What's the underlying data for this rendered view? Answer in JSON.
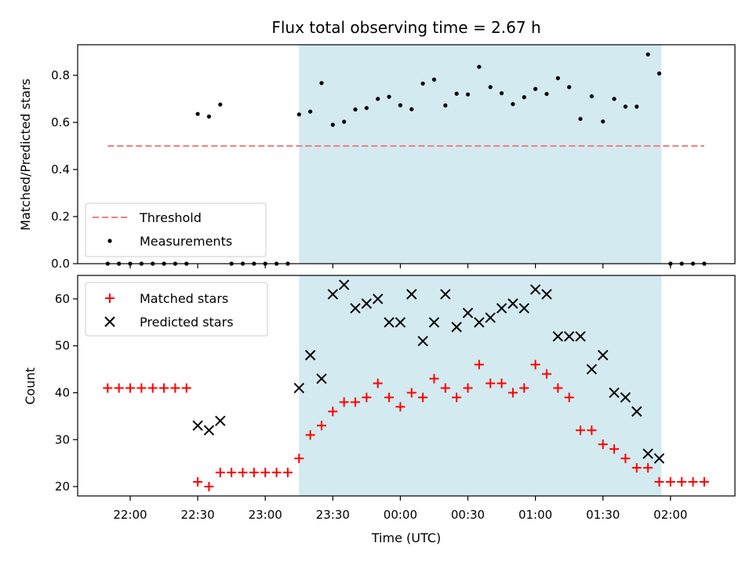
{
  "chart_data": [
    {
      "type": "scatter",
      "title": "Flux total observing time = 2.67 h",
      "ylabel": "Matched/Predicted stars",
      "ylim": [
        0,
        0.93
      ],
      "yticks": [
        "0.0",
        "0.2",
        "0.4",
        "0.6",
        "0.8"
      ],
      "legend_position": "lower-left",
      "shaded_interval": [
        "23:15",
        "01:56"
      ],
      "threshold": {
        "name": "Threshold",
        "value": 0.5,
        "x_range": [
          "21:50",
          "02:15"
        ],
        "color": "#f08080",
        "style": "dashed"
      },
      "series": [
        {
          "name": "Measurements",
          "color": "#000000",
          "marker": "dot",
          "points": [
            [
              "21:50",
              0.0
            ],
            [
              "21:55",
              0.0
            ],
            [
              "22:00",
              0.0
            ],
            [
              "22:05",
              0.0
            ],
            [
              "22:10",
              0.0
            ],
            [
              "22:15",
              0.0
            ],
            [
              "22:20",
              0.0
            ],
            [
              "22:25",
              0.0
            ],
            [
              "22:30",
              0.636
            ],
            [
              "22:35",
              0.625
            ],
            [
              "22:40",
              0.676
            ],
            [
              "22:45",
              0.0
            ],
            [
              "22:50",
              0.0
            ],
            [
              "22:55",
              0.0
            ],
            [
              "23:00",
              0.0
            ],
            [
              "23:05",
              0.0
            ],
            [
              "23:10",
              0.0
            ],
            [
              "23:15",
              0.634
            ],
            [
              "23:20",
              0.646
            ],
            [
              "23:25",
              0.767
            ],
            [
              "23:30",
              0.59
            ],
            [
              "23:35",
              0.603
            ],
            [
              "23:40",
              0.655
            ],
            [
              "23:45",
              0.661
            ],
            [
              "23:50",
              0.7
            ],
            [
              "23:55",
              0.709
            ],
            [
              "00:00",
              0.673
            ],
            [
              "00:05",
              0.656
            ],
            [
              "00:10",
              0.765
            ],
            [
              "00:15",
              0.782
            ],
            [
              "00:20",
              0.672
            ],
            [
              "00:25",
              0.722
            ],
            [
              "00:30",
              0.719
            ],
            [
              "00:35",
              0.836
            ],
            [
              "00:40",
              0.75
            ],
            [
              "00:45",
              0.724
            ],
            [
              "00:50",
              0.678
            ],
            [
              "00:55",
              0.707
            ],
            [
              "01:00",
              0.742
            ],
            [
              "01:05",
              0.721
            ],
            [
              "01:10",
              0.788
            ],
            [
              "01:15",
              0.75
            ],
            [
              "01:20",
              0.615
            ],
            [
              "01:25",
              0.711
            ],
            [
              "01:30",
              0.604
            ],
            [
              "01:35",
              0.7
            ],
            [
              "01:40",
              0.667
            ],
            [
              "01:45",
              0.667
            ],
            [
              "01:50",
              0.889
            ],
            [
              "01:55",
              0.808
            ],
            [
              "02:00",
              0.0
            ],
            [
              "02:05",
              0.0
            ],
            [
              "02:10",
              0.0
            ],
            [
              "02:15",
              0.0
            ]
          ]
        }
      ]
    },
    {
      "type": "scatter",
      "xlabel": "Time (UTC)",
      "ylabel": "Count",
      "xlim": [
        "21:32",
        "02:30"
      ],
      "ylim": [
        18,
        65
      ],
      "xticks": [
        "22:00",
        "22:30",
        "23:00",
        "23:30",
        "00:00",
        "00:30",
        "01:00",
        "01:30",
        "02:00"
      ],
      "yticks": [
        "20",
        "30",
        "40",
        "50",
        "60"
      ],
      "legend_position": "top-left",
      "shaded_interval": [
        "23:15",
        "01:56"
      ],
      "shade_color": "#d3eaf0",
      "series": [
        {
          "name": "Matched stars",
          "color": "#ff0000",
          "marker": "plus",
          "points": [
            [
              "21:50",
              41
            ],
            [
              "21:55",
              41
            ],
            [
              "22:00",
              41
            ],
            [
              "22:05",
              41
            ],
            [
              "22:10",
              41
            ],
            [
              "22:15",
              41
            ],
            [
              "22:20",
              41
            ],
            [
              "22:25",
              41
            ],
            [
              "22:30",
              21
            ],
            [
              "22:35",
              20
            ],
            [
              "22:40",
              23
            ],
            [
              "22:45",
              23
            ],
            [
              "22:50",
              23
            ],
            [
              "22:55",
              23
            ],
            [
              "23:00",
              23
            ],
            [
              "23:05",
              23
            ],
            [
              "23:10",
              23
            ],
            [
              "23:15",
              26
            ],
            [
              "23:20",
              31
            ],
            [
              "23:25",
              33
            ],
            [
              "23:30",
              36
            ],
            [
              "23:35",
              38
            ],
            [
              "23:40",
              38
            ],
            [
              "23:45",
              39
            ],
            [
              "23:50",
              42
            ],
            [
              "23:55",
              39
            ],
            [
              "00:00",
              37
            ],
            [
              "00:05",
              40
            ],
            [
              "00:10",
              39
            ],
            [
              "00:15",
              43
            ],
            [
              "00:20",
              41
            ],
            [
              "00:25",
              39
            ],
            [
              "00:30",
              41
            ],
            [
              "00:35",
              46
            ],
            [
              "00:40",
              42
            ],
            [
              "00:45",
              42
            ],
            [
              "00:50",
              40
            ],
            [
              "00:55",
              41
            ],
            [
              "01:00",
              46
            ],
            [
              "01:05",
              44
            ],
            [
              "01:10",
              41
            ],
            [
              "01:15",
              39
            ],
            [
              "01:20",
              32
            ],
            [
              "01:25",
              32
            ],
            [
              "01:30",
              29
            ],
            [
              "01:35",
              28
            ],
            [
              "01:40",
              26
            ],
            [
              "01:45",
              24
            ],
            [
              "01:50",
              24
            ],
            [
              "01:55",
              21
            ],
            [
              "02:00",
              21
            ],
            [
              "02:05",
              21
            ],
            [
              "02:10",
              21
            ],
            [
              "02:15",
              21
            ]
          ]
        },
        {
          "name": "Predicted stars",
          "color": "#000000",
          "marker": "x",
          "points": [
            [
              "22:30",
              33
            ],
            [
              "22:35",
              32
            ],
            [
              "22:40",
              34
            ],
            [
              "23:15",
              41
            ],
            [
              "23:20",
              48
            ],
            [
              "23:25",
              43
            ],
            [
              "23:30",
              61
            ],
            [
              "23:35",
              63
            ],
            [
              "23:40",
              58
            ],
            [
              "23:45",
              59
            ],
            [
              "23:50",
              60
            ],
            [
              "23:55",
              55
            ],
            [
              "00:00",
              55
            ],
            [
              "00:05",
              61
            ],
            [
              "00:10",
              51
            ],
            [
              "00:15",
              55
            ],
            [
              "00:20",
              61
            ],
            [
              "00:25",
              54
            ],
            [
              "00:30",
              57
            ],
            [
              "00:35",
              55
            ],
            [
              "00:40",
              56
            ],
            [
              "00:45",
              58
            ],
            [
              "00:50",
              59
            ],
            [
              "00:55",
              58
            ],
            [
              "01:00",
              62
            ],
            [
              "01:05",
              61
            ],
            [
              "01:10",
              52
            ],
            [
              "01:15",
              52
            ],
            [
              "01:20",
              52
            ],
            [
              "01:25",
              45
            ],
            [
              "01:30",
              48
            ],
            [
              "01:35",
              40
            ],
            [
              "01:40",
              39
            ],
            [
              "01:45",
              36
            ],
            [
              "01:50",
              27
            ],
            [
              "01:55",
              26
            ]
          ]
        }
      ]
    }
  ]
}
